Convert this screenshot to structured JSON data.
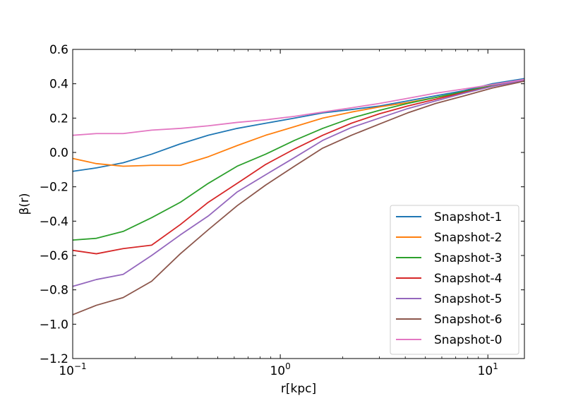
{
  "chart_data": {
    "type": "line",
    "xscale": "log",
    "xlim": [
      0.1,
      15
    ],
    "ylim": [
      -1.2,
      0.6
    ],
    "xlabel": "r[kpc]",
    "ylabel": "β(r)",
    "x_ticks": [
      {
        "value": 0.1,
        "base": "10",
        "exp": "−1"
      },
      {
        "value": 1,
        "base": "10",
        "exp": "0"
      },
      {
        "value": 10,
        "base": "10",
        "exp": "1"
      }
    ],
    "y_ticks": [
      {
        "value": -1.2,
        "label": "−1.2"
      },
      {
        "value": -1.0,
        "label": "−1.0"
      },
      {
        "value": -0.8,
        "label": "−0.8"
      },
      {
        "value": -0.6,
        "label": "−0.6"
      },
      {
        "value": -0.4,
        "label": "−0.4"
      },
      {
        "value": -0.2,
        "label": "−0.2"
      },
      {
        "value": 0.0,
        "label": "0.0"
      },
      {
        "value": 0.2,
        "label": "0.2"
      },
      {
        "value": 0.4,
        "label": "0.4"
      },
      {
        "value": 0.6,
        "label": "0.6"
      }
    ],
    "legend_position": "lower-right",
    "x": [
      0.1,
      0.13,
      0.175,
      0.24,
      0.33,
      0.45,
      0.62,
      0.85,
      1.17,
      1.6,
      2.2,
      3.0,
      4.1,
      5.6,
      7.7,
      10.5,
      15
    ],
    "series": [
      {
        "name": "Snapshot-1",
        "color": "#1f77b4",
        "values": [
          -0.11,
          -0.09,
          -0.06,
          -0.01,
          0.05,
          0.1,
          0.14,
          0.17,
          0.2,
          0.23,
          0.25,
          0.27,
          0.3,
          0.33,
          0.36,
          0.4,
          0.43
        ]
      },
      {
        "name": "Snapshot-2",
        "color": "#ff7f0e",
        "values": [
          -0.035,
          -0.065,
          -0.08,
          -0.075,
          -0.075,
          -0.025,
          0.04,
          0.1,
          0.15,
          0.2,
          0.235,
          0.265,
          0.29,
          0.32,
          0.35,
          0.39,
          0.425
        ]
      },
      {
        "name": "Snapshot-3",
        "color": "#2ca02c",
        "values": [
          -0.51,
          -0.5,
          -0.46,
          -0.38,
          -0.29,
          -0.18,
          -0.08,
          -0.01,
          0.07,
          0.14,
          0.2,
          0.245,
          0.285,
          0.32,
          0.355,
          0.39,
          0.42
        ]
      },
      {
        "name": "Snapshot-4",
        "color": "#d62728",
        "values": [
          -0.57,
          -0.59,
          -0.56,
          -0.54,
          -0.42,
          -0.29,
          -0.18,
          -0.07,
          0.02,
          0.1,
          0.17,
          0.225,
          0.27,
          0.31,
          0.35,
          0.385,
          0.42
        ]
      },
      {
        "name": "Snapshot-5",
        "color": "#9467bd",
        "values": [
          -0.78,
          -0.74,
          -0.71,
          -0.6,
          -0.48,
          -0.37,
          -0.23,
          -0.13,
          -0.03,
          0.07,
          0.145,
          0.2,
          0.255,
          0.3,
          0.345,
          0.385,
          0.42
        ]
      },
      {
        "name": "Snapshot-6",
        "color": "#8c564b",
        "values": [
          -0.945,
          -0.89,
          -0.845,
          -0.75,
          -0.59,
          -0.45,
          -0.31,
          -0.19,
          -0.08,
          0.025,
          0.1,
          0.165,
          0.23,
          0.285,
          0.33,
          0.375,
          0.415
        ]
      },
      {
        "name": "Snapshot-0",
        "color": "#e377c2",
        "values": [
          0.1,
          0.11,
          0.11,
          0.13,
          0.14,
          0.155,
          0.175,
          0.19,
          0.21,
          0.235,
          0.26,
          0.285,
          0.315,
          0.345,
          0.37,
          0.395,
          0.425
        ]
      }
    ]
  }
}
